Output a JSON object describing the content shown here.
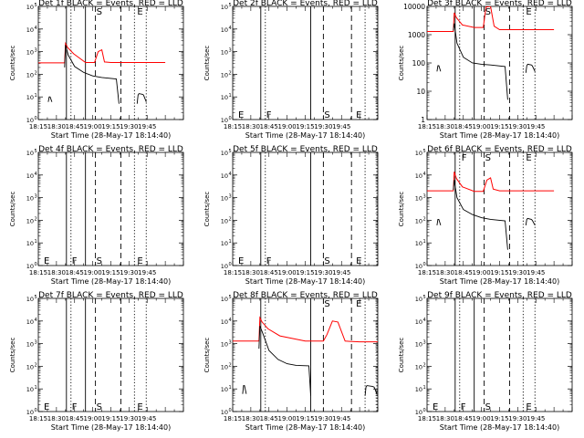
{
  "figure": {
    "background": "#ffffff",
    "foreground": "#000000",
    "xlabel": "Start Time (28-May-17 18:14:40)",
    "ylabel": "Counts/sec",
    "xticks": [
      "18:15",
      "18:30",
      "18:45",
      "19:00",
      "19:15",
      "19:30",
      "19:45"
    ],
    "colors": {
      "events": "#000000",
      "lld": "#ff0000"
    }
  },
  "chart_data": [
    {
      "type": "line",
      "title": "Det 1f BLACK = Events, RED = LLD",
      "yscale": "log",
      "ytick_style": "exp",
      "ylim": [
        1,
        100000
      ],
      "empty": false,
      "markers": {
        "solid": [
          19.55,
          20.6
        ],
        "dashed": [
          21.15,
          22.55
        ],
        "dotted": [
          19.8,
          23.3,
          23.95
        ],
        "letters": [
          {
            "text": "S",
            "x": 21.2,
            "y": 100000
          },
          {
            "text": "E",
            "x": 23.45,
            "y": 100000
          }
        ]
      },
      "series": [
        {
          "name": "LLD",
          "x": [
            18.0,
            19.45,
            19.5,
            19.62,
            19.95,
            20.6,
            20.8,
            21.1,
            21.3,
            21.5,
            21.65,
            22.0,
            23.0,
            25.0
          ],
          "values": [
            320,
            320,
            2300,
            1500,
            800,
            330,
            330,
            330,
            1000,
            1200,
            350,
            330,
            330,
            330
          ]
        },
        {
          "name": "Events",
          "segments": [
            {
              "x": [
                19.45,
                19.5,
                19.65,
                20.0,
                20.5,
                21.0,
                21.5,
                22.3,
                22.45
              ],
              "values": [
                200,
                2000,
                700,
                220,
                120,
                85,
                72,
                62,
                5
              ]
            },
            {
              "x": [
                18.55,
                18.6,
                18.65,
                18.75
              ],
              "values": [
                6,
                10,
                10,
                6
              ]
            },
            {
              "x": [
                23.45,
                23.5,
                23.55,
                23.75,
                23.8,
                23.95
              ],
              "values": [
                5,
                12,
                14,
                13,
                12,
                6
              ]
            }
          ]
        }
      ]
    },
    {
      "type": "line",
      "title": "Det 2f BLACK = Events, RED = LLD",
      "yscale": "log",
      "ytick_style": "exp",
      "ylim": [
        1,
        100000
      ],
      "empty": true,
      "markers": {
        "solid": [
          19.55,
          22.3
        ],
        "dashed": [
          23.0,
          24.55
        ],
        "dotted": [
          19.8,
          25.3,
          25.95
        ],
        "letters": [
          {
            "text": "E",
            "x": 18.3,
            "y": 2
          },
          {
            "text": "F",
            "x": 19.85,
            "y": 2
          },
          {
            "text": "S",
            "x": 23.05,
            "y": 2
          },
          {
            "text": "E",
            "x": 24.8,
            "y": 2
          }
        ]
      },
      "series": []
    },
    {
      "type": "line",
      "title": "Det 3f BLACK = Events, RED = LLD",
      "yscale": "log",
      "ytick_style": "plain",
      "ylim": [
        1,
        10000
      ],
      "empty": false,
      "markers": {
        "solid": [
          19.55,
          20.6
        ],
        "dashed": [
          21.15,
          22.55
        ],
        "dotted": [
          19.8,
          23.3,
          23.95
        ],
        "letters": [
          {
            "text": "S",
            "x": 21.2,
            "y": 10000
          },
          {
            "text": "E",
            "x": 23.45,
            "y": 10000
          }
        ]
      },
      "series": [
        {
          "name": "LLD",
          "x": [
            18.0,
            19.45,
            19.5,
            19.62,
            19.95,
            20.6,
            20.8,
            21.1,
            21.25,
            21.5,
            21.7,
            22.0,
            23.0,
            25.0
          ],
          "values": [
            1300,
            1300,
            6000,
            4000,
            2200,
            1800,
            1800,
            1800,
            9500,
            10000,
            2000,
            1500,
            1500,
            1500
          ]
        },
        {
          "name": "Events",
          "segments": [
            {
              "x": [
                19.45,
                19.5,
                19.65,
                20.0,
                20.5,
                21.0,
                21.5,
                22.3,
                22.45
              ],
              "values": [
                1400,
                2500,
                500,
                160,
                100,
                90,
                85,
                75,
                5
              ]
            },
            {
              "x": [
                18.55,
                18.6,
                18.65,
                18.75
              ],
              "values": [
                50,
                80,
                80,
                50
              ]
            },
            {
              "x": [
                23.45,
                23.5,
                23.55,
                23.75,
                23.8,
                23.95
              ],
              "values": [
                45,
                80,
                90,
                85,
                80,
                50
              ]
            }
          ]
        }
      ]
    },
    {
      "type": "line",
      "title": "Det 4f BLACK = Events, RED = LLD",
      "yscale": "log",
      "ytick_style": "exp",
      "ylim": [
        1,
        100000
      ],
      "empty": true,
      "markers": {
        "solid": [
          19.55,
          20.6
        ],
        "dashed": [
          21.15,
          22.55
        ],
        "dotted": [
          19.8,
          23.3,
          23.95
        ],
        "letters": [
          {
            "text": "E",
            "x": 18.3,
            "y": 2
          },
          {
            "text": "F",
            "x": 19.85,
            "y": 2
          },
          {
            "text": "S",
            "x": 21.2,
            "y": 2
          },
          {
            "text": "E",
            "x": 23.45,
            "y": 2
          }
        ]
      },
      "series": []
    },
    {
      "type": "line",
      "title": "Det 5f BLACK = Events, RED = LLD",
      "yscale": "log",
      "ytick_style": "exp",
      "ylim": [
        1,
        100000
      ],
      "empty": true,
      "markers": {
        "solid": [
          19.55,
          22.3
        ],
        "dashed": [
          23.0,
          24.55
        ],
        "dotted": [
          19.8,
          25.3,
          25.95
        ],
        "letters": [
          {
            "text": "E",
            "x": 18.3,
            "y": 2
          },
          {
            "text": "F",
            "x": 19.85,
            "y": 2
          },
          {
            "text": "S",
            "x": 23.05,
            "y": 2
          },
          {
            "text": "E",
            "x": 24.8,
            "y": 2
          }
        ]
      },
      "series": []
    },
    {
      "type": "line",
      "title": "Det 6f BLACK = Events, RED = LLD",
      "yscale": "log",
      "ytick_style": "exp",
      "ylim": [
        1,
        100000
      ],
      "empty": false,
      "markers": {
        "solid": [
          19.55,
          20.6
        ],
        "dashed": [
          21.15,
          22.55
        ],
        "dotted": [
          19.8,
          23.3,
          23.95
        ],
        "letters": [
          {
            "text": "F",
            "x": 19.9,
            "y": 100000
          },
          {
            "text": "S",
            "x": 21.2,
            "y": 100000
          },
          {
            "text": "E",
            "x": 23.45,
            "y": 100000
          }
        ]
      },
      "series": [
        {
          "name": "LLD",
          "x": [
            18.0,
            19.45,
            19.5,
            19.62,
            19.95,
            20.6,
            20.8,
            21.1,
            21.3,
            21.5,
            21.65,
            22.0,
            23.0,
            25.0
          ],
          "values": [
            2000,
            2000,
            14000,
            7000,
            3000,
            1900,
            1900,
            1900,
            6000,
            7500,
            2400,
            2000,
            2000,
            2000
          ]
        },
        {
          "name": "Events",
          "segments": [
            {
              "x": [
                19.45,
                19.5,
                19.65,
                20.0,
                20.5,
                21.0,
                21.5,
                22.3,
                22.45
              ],
              "values": [
                2200,
                6000,
                1000,
                300,
                180,
                130,
                110,
                95,
                5
              ]
            },
            {
              "x": [
                18.55,
                18.6,
                18.65,
                18.75
              ],
              "values": [
                60,
                110,
                110,
                60
              ]
            },
            {
              "x": [
                23.45,
                23.5,
                23.55,
                23.75,
                23.8,
                23.95
              ],
              "values": [
                60,
                110,
                120,
                110,
                100,
                60
              ]
            }
          ]
        }
      ]
    },
    {
      "type": "line",
      "title": "Det 7f BLACK = Events, RED = LLD",
      "yscale": "log",
      "ytick_style": "exp",
      "ylim": [
        1,
        100000
      ],
      "empty": true,
      "markers": {
        "solid": [
          19.55,
          20.6
        ],
        "dashed": [
          21.15,
          22.55
        ],
        "dotted": [
          19.8,
          23.3,
          23.95
        ],
        "letters": [
          {
            "text": "E",
            "x": 18.3,
            "y": 2
          },
          {
            "text": "F",
            "x": 19.85,
            "y": 2
          },
          {
            "text": "S",
            "x": 21.2,
            "y": 2
          },
          {
            "text": "E",
            "x": 23.45,
            "y": 2
          }
        ]
      },
      "series": []
    },
    {
      "type": "line",
      "title": "Det 8f BLACK = Events, RED = LLD",
      "yscale": "log",
      "ytick_style": "exp",
      "ylim": [
        1,
        100000
      ],
      "empty": false,
      "markers": {
        "solid": [
          19.55,
          22.3
        ],
        "dashed": [
          23.0,
          24.55
        ],
        "dotted": [
          19.8,
          25.3,
          25.95
        ],
        "letters": [
          {
            "text": "S",
            "x": 23.05,
            "y": 100000
          },
          {
            "text": "E",
            "x": 24.8,
            "y": 100000
          }
        ]
      },
      "series": [
        {
          "name": "LLD",
          "x": [
            18.0,
            19.45,
            19.5,
            19.62,
            19.95,
            20.6,
            22.0,
            23.0,
            23.2,
            23.5,
            23.8,
            24.2,
            25.0,
            26.0
          ],
          "values": [
            1300,
            1300,
            14000,
            9000,
            4500,
            2200,
            1300,
            1300,
            2500,
            10000,
            9000,
            1300,
            1200,
            1200
          ]
        },
        {
          "name": "Events",
          "segments": [
            {
              "x": [
                19.45,
                19.5,
                19.65,
                20.0,
                20.5,
                21.0,
                21.5,
                22.2,
                22.3
              ],
              "values": [
                600,
                6000,
                3000,
                500,
                200,
                130,
                110,
                105,
                5
              ]
            },
            {
              "x": [
                18.55,
                18.6,
                18.65,
                18.75
              ],
              "values": [
                6,
                14,
                14,
                6
              ]
            },
            {
              "x": [
                25.3,
                25.35,
                25.4,
                25.7,
                25.8,
                25.95
              ],
              "values": [
                5,
                12,
                14,
                13,
                12,
                6
              ]
            }
          ]
        }
      ]
    },
    {
      "type": "line",
      "title": "Det 9f BLACK = Events, RED = LLD",
      "yscale": "log",
      "ytick_style": "exp",
      "ylim": [
        1,
        100000
      ],
      "empty": true,
      "markers": {
        "solid": [
          19.55,
          20.6
        ],
        "dashed": [
          21.15,
          22.55
        ],
        "dotted": [
          19.8,
          23.3,
          23.95
        ],
        "letters": [
          {
            "text": "E",
            "x": 18.3,
            "y": 2
          },
          {
            "text": "F",
            "x": 19.85,
            "y": 2
          },
          {
            "text": "S",
            "x": 21.2,
            "y": 2
          },
          {
            "text": "E",
            "x": 23.45,
            "y": 2
          }
        ]
      },
      "series": []
    }
  ]
}
